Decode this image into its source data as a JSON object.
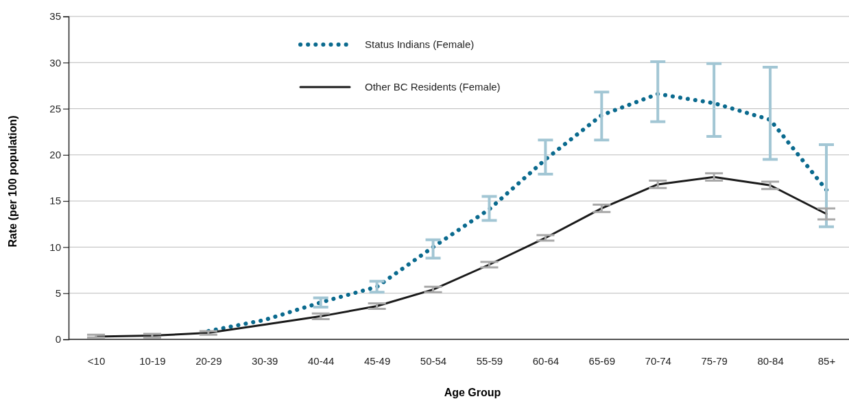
{
  "chart_data": {
    "type": "line",
    "xlabel": "Age Group",
    "ylabel": "Rate (per 100 population)",
    "categories": [
      "<10",
      "10-19",
      "20-29",
      "30-39",
      "40-44",
      "45-49",
      "50-54",
      "55-59",
      "60-64",
      "65-69",
      "70-74",
      "75-79",
      "80-84",
      "85+"
    ],
    "series": [
      {
        "name": "Status Indians (Female)",
        "color": "#0a6a8e",
        "line_style": "dotted",
        "values": [
          null,
          null,
          0.9,
          2.1,
          4.0,
          5.7,
          10.0,
          14.1,
          19.5,
          24.3,
          26.6,
          25.6,
          23.8,
          16.2
        ],
        "errors": [
          null,
          null,
          null,
          null,
          [
            3.5,
            4.5
          ],
          [
            5.1,
            6.3
          ],
          [
            8.8,
            10.8
          ],
          [
            12.9,
            15.5
          ],
          [
            17.9,
            21.6
          ],
          [
            21.6,
            26.8
          ],
          [
            23.6,
            30.1
          ],
          [
            22.0,
            29.9
          ],
          [
            19.5,
            29.5
          ],
          [
            12.2,
            21.1
          ]
        ]
      },
      {
        "name": "Other BC Residents (Female)",
        "color": "#1a1a1a",
        "line_style": "solid",
        "values": [
          0.3,
          0.4,
          0.7,
          1.6,
          2.5,
          3.6,
          5.4,
          8.1,
          11.0,
          14.2,
          16.8,
          17.6,
          16.7,
          13.6
        ],
        "errors": [
          [
            0.2,
            0.5
          ],
          [
            0.2,
            0.6
          ],
          [
            0.5,
            0.9
          ],
          null,
          [
            2.2,
            2.8
          ],
          [
            3.3,
            3.9
          ],
          [
            5.1,
            5.7
          ],
          [
            7.8,
            8.4
          ],
          [
            10.7,
            11.3
          ],
          [
            13.8,
            14.6
          ],
          [
            16.4,
            17.2
          ],
          [
            17.2,
            18.0
          ],
          [
            16.3,
            17.1
          ],
          [
            13.0,
            14.2
          ]
        ]
      }
    ],
    "ylim": [
      0,
      35
    ],
    "yticks": [
      0,
      5,
      10,
      15,
      20,
      25,
      30,
      35
    ],
    "grid": "y",
    "legend": "top"
  }
}
